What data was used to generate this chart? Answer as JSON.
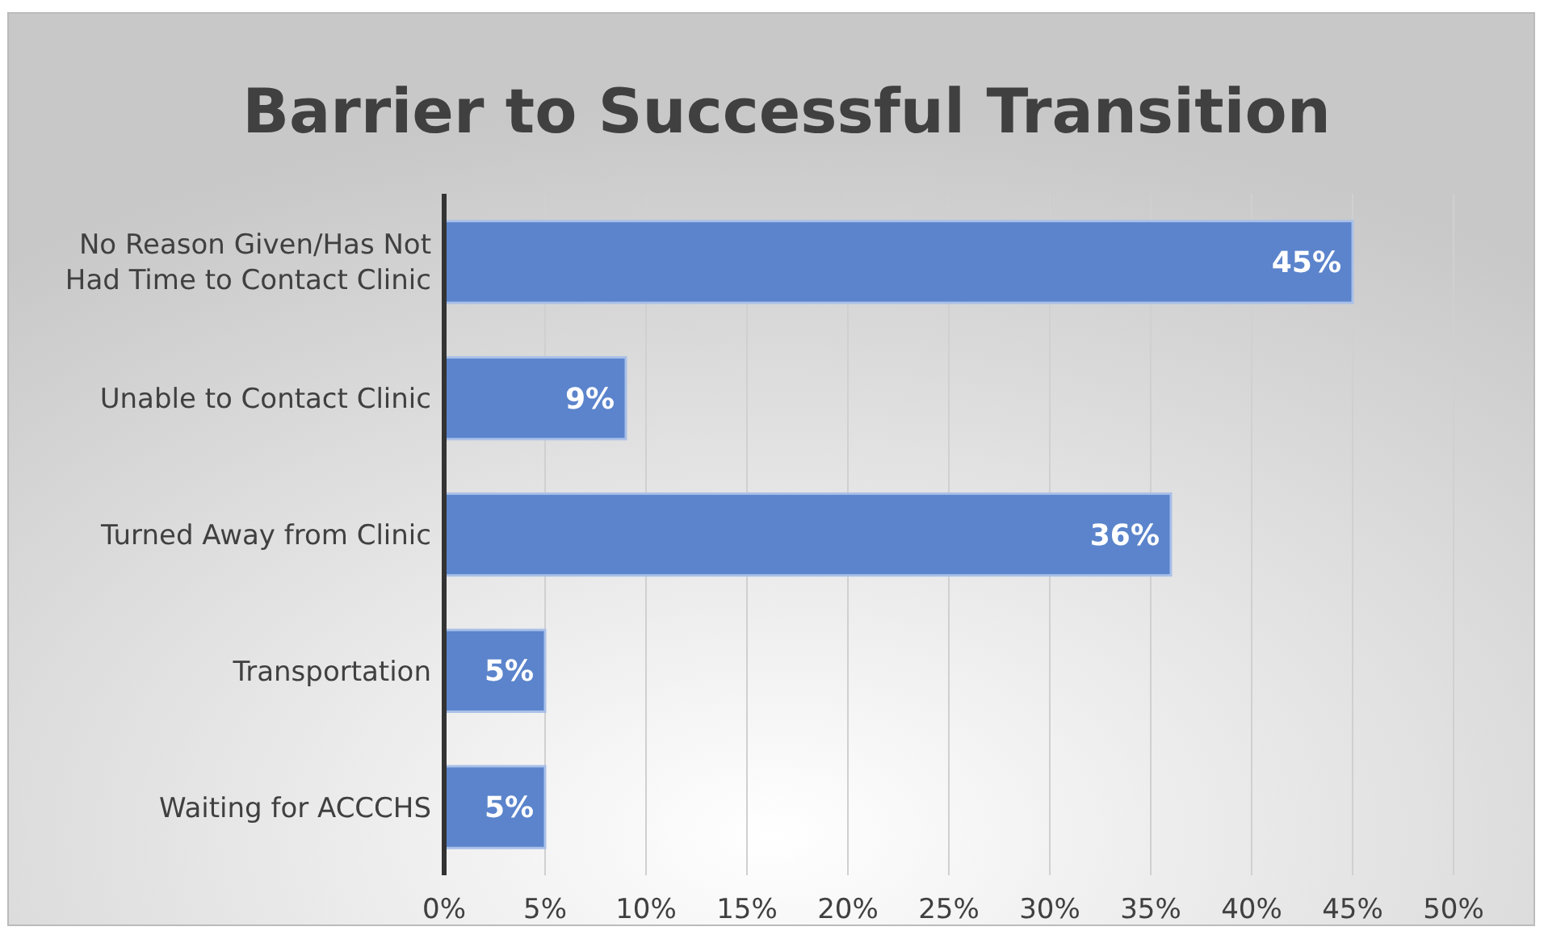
{
  "chart_data": {
    "type": "bar",
    "orientation": "horizontal",
    "title": "Barrier to Successful Transition",
    "categories": [
      "No Reason Given/Has Not Had Time to Contact Clinic",
      "Unable to Contact Clinic",
      "Turned Away from Clinic",
      "Transportation",
      "Waiting for ACCCHS"
    ],
    "values": [
      45,
      9,
      36,
      5,
      5
    ],
    "value_labels": [
      "45%",
      "9%",
      "36%",
      "5%",
      "5%"
    ],
    "color": "#5b84cc",
    "xlim": [
      0,
      50
    ],
    "xticks": [
      {
        "value": 0,
        "label": "0%"
      },
      {
        "value": 5,
        "label": "5%"
      },
      {
        "value": 10,
        "label": "10%"
      },
      {
        "value": 15,
        "label": "15%"
      },
      {
        "value": 20,
        "label": "20%"
      },
      {
        "value": 25,
        "label": "25%"
      },
      {
        "value": 30,
        "label": "30%"
      },
      {
        "value": 35,
        "label": "35%"
      },
      {
        "value": 40,
        "label": "40%"
      },
      {
        "value": 45,
        "label": "45%"
      },
      {
        "value": 50,
        "label": "50%"
      }
    ],
    "grid": "x"
  }
}
